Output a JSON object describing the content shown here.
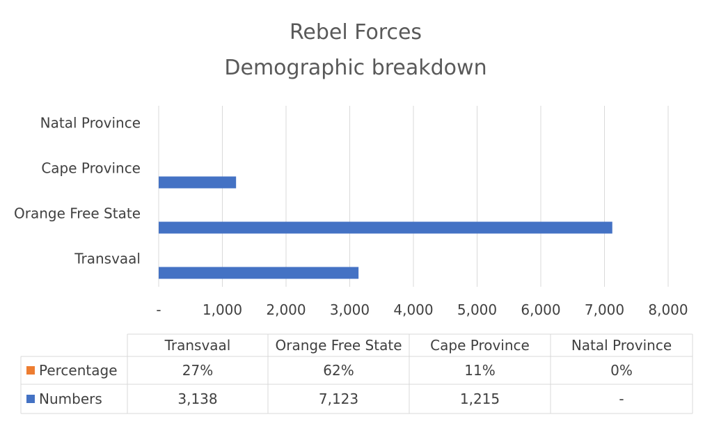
{
  "chart_data": {
    "type": "bar",
    "orientation": "horizontal",
    "title_lines": [
      "Rebel Forces",
      "Demographic breakdown"
    ],
    "categories": [
      "Transvaal",
      "Orange Free State",
      "Cape Province",
      "Natal Province"
    ],
    "series": [
      {
        "name": "Percentage",
        "values": [
          0.27,
          0.62,
          0.11,
          0
        ],
        "display_values": [
          "27%",
          "62%",
          "11%",
          "0%"
        ],
        "color": "#ED7D31"
      },
      {
        "name": "Numbers",
        "values": [
          3138,
          7123,
          1215,
          0
        ],
        "display_values": [
          "3,138",
          "7,123",
          "1,215",
          "-"
        ],
        "color": "#4472C4"
      }
    ],
    "xlim": [
      0,
      8000
    ],
    "x_ticks": [
      0,
      1000,
      2000,
      3000,
      4000,
      5000,
      6000,
      7000,
      8000
    ],
    "x_tick_labels": [
      "-",
      "1,000",
      "2,000",
      "3,000",
      "4,000",
      "5,000",
      "6,000",
      "7,000",
      "8,000"
    ],
    "grid": true,
    "legend": "data-table"
  }
}
